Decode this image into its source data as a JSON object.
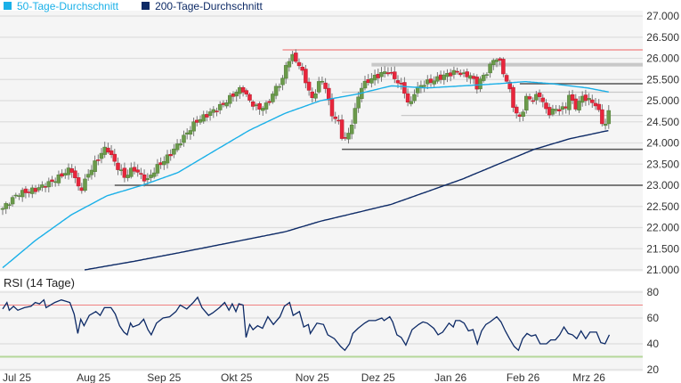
{
  "legend": [
    {
      "label": "50-Tage-Durchschnitt",
      "color": "#1ab0e8"
    },
    {
      "label": "200-Tage-Durchschnitt",
      "color": "#0d2a66"
    }
  ],
  "chart_data": [
    {
      "type": "candlestick",
      "title": "",
      "x_unit": "trading day index",
      "xlim": [
        0,
        184
      ],
      "ylim": [
        21000,
        27000
      ],
      "y_ticks": [
        "27.000",
        "26.500",
        "26.000",
        "25.500",
        "25.000",
        "24.500",
        "24.000",
        "23.500",
        "23.000",
        "22.500",
        "22.000",
        "21.500",
        "21.000"
      ],
      "y_tick_values": [
        27000,
        26500,
        26000,
        25500,
        25000,
        24500,
        24000,
        23500,
        23000,
        22500,
        22000,
        21500,
        21000
      ],
      "x_ticks": [
        {
          "label": "Jul 25",
          "day": 0
        },
        {
          "label": "Aug 25",
          "day": 27.6
        },
        {
          "label": "Sep 25",
          "day": 49
        },
        {
          "label": "Okt 25",
          "day": 71
        },
        {
          "label": "Nov 25",
          "day": 94
        },
        {
          "label": "Dez 25",
          "day": 114
        },
        {
          "label": "Jan 26",
          "day": 136
        },
        {
          "label": "Feb 26",
          "day": 158
        },
        {
          "label": "Mrz 26",
          "day": 178
        }
      ],
      "close_anchors": [
        [
          0,
          22450
        ],
        [
          4.6,
          22800
        ],
        [
          10,
          22900
        ],
        [
          15.4,
          23100
        ],
        [
          20.8,
          23400
        ],
        [
          23.5,
          22850
        ],
        [
          26.2,
          23300
        ],
        [
          30.3,
          23800
        ],
        [
          31.6,
          23900
        ],
        [
          34.3,
          23500
        ],
        [
          37,
          23200
        ],
        [
          39.7,
          23400
        ],
        [
          43.8,
          23100
        ],
        [
          46.5,
          23400
        ],
        [
          50.5,
          23700
        ],
        [
          54.6,
          24100
        ],
        [
          58.6,
          24500
        ],
        [
          62.7,
          24700
        ],
        [
          66.8,
          24900
        ],
        [
          70.8,
          25200
        ],
        [
          72.7,
          25300
        ],
        [
          74.9,
          25000
        ],
        [
          77.6,
          24800
        ],
        [
          80.3,
          24900
        ],
        [
          83,
          25300
        ],
        [
          85.1,
          25500
        ],
        [
          86.2,
          25900
        ],
        [
          87.8,
          26050
        ],
        [
          89.7,
          25900
        ],
        [
          92.4,
          25400
        ],
        [
          93.8,
          25000
        ],
        [
          96.5,
          25500
        ],
        [
          97.8,
          25400
        ],
        [
          99.7,
          24700
        ],
        [
          101.9,
          24500
        ],
        [
          103.2,
          24100
        ],
        [
          104.6,
          24100
        ],
        [
          106.8,
          24700
        ],
        [
          108.6,
          25300
        ],
        [
          111.4,
          25500
        ],
        [
          114.1,
          25600
        ],
        [
          116.8,
          25700
        ],
        [
          119.5,
          25500
        ],
        [
          122.2,
          25200
        ],
        [
          123.5,
          24800
        ],
        [
          124.9,
          25200
        ],
        [
          127.6,
          25400
        ],
        [
          131.6,
          25500
        ],
        [
          134.3,
          25600
        ],
        [
          138.4,
          25700
        ],
        [
          139.7,
          25600
        ],
        [
          142.4,
          25600
        ],
        [
          143.8,
          25300
        ],
        [
          145.1,
          25500
        ],
        [
          147.3,
          25700
        ],
        [
          149.2,
          26000
        ],
        [
          150.5,
          26000
        ],
        [
          151.9,
          25700
        ],
        [
          154.6,
          25100
        ],
        [
          155.4,
          24700
        ],
        [
          157.3,
          24600
        ],
        [
          159.2,
          25100
        ],
        [
          161.4,
          25000
        ],
        [
          162.7,
          25200
        ],
        [
          165.4,
          24700
        ],
        [
          168.1,
          24800
        ],
        [
          170.8,
          24800
        ],
        [
          172.2,
          25200
        ],
        [
          173.5,
          24800
        ],
        [
          176.2,
          25100
        ],
        [
          178.1,
          25000
        ],
        [
          180.3,
          24900
        ],
        [
          181.9,
          24500
        ],
        [
          183,
          24450
        ],
        [
          184.3,
          24800
        ]
      ],
      "series": [
        {
          "name": "50-Tage-Durchschnitt",
          "color": "#1ab0e8",
          "points": [
            [
              0,
              21050
            ],
            [
              10,
              21700
            ],
            [
              20.8,
              22300
            ],
            [
              31.6,
              22750
            ],
            [
              42.4,
              23000
            ],
            [
              53.2,
              23300
            ],
            [
              64,
              23800
            ],
            [
              74.9,
              24300
            ],
            [
              85.7,
              24700
            ],
            [
              96.5,
              25000
            ],
            [
              107.3,
              25150
            ],
            [
              118,
              25350
            ],
            [
              128.9,
              25300
            ],
            [
              139.7,
              25350
            ],
            [
              150.5,
              25400
            ],
            [
              158.6,
              25450
            ],
            [
              166.8,
              25400
            ],
            [
              177.6,
              25300
            ],
            [
              184.3,
              25200
            ]
          ]
        },
        {
          "name": "200-Tage-Durchschnitt",
          "color": "#0d2a66",
          "points": [
            [
              24.9,
              21000
            ],
            [
              39.7,
              21200
            ],
            [
              53.2,
              21400
            ],
            [
              69.5,
              21650
            ],
            [
              85.7,
              21900
            ],
            [
              96.5,
              22150
            ],
            [
              107.3,
              22350
            ],
            [
              118,
              22550
            ],
            [
              128.9,
              22850
            ],
            [
              139.7,
              23150
            ],
            [
              150.5,
              23500
            ],
            [
              161.4,
              23850
            ],
            [
              172.2,
              24100
            ],
            [
              184.3,
              24300
            ]
          ]
        }
      ],
      "levels": [
        {
          "value": 26200,
          "from_day": 85,
          "color": "#f08080",
          "style": "resistance"
        },
        {
          "value": 25850,
          "from_day": 112,
          "color": "#c8c8c8",
          "style": "zone"
        },
        {
          "value": 25400,
          "from_day": 157,
          "color": "#555555",
          "style": "line"
        },
        {
          "value": 25200,
          "from_day": 103,
          "color": "#c8c8c8",
          "style": "light"
        },
        {
          "value": 24650,
          "from_day": 121,
          "color": "#c8c8c8",
          "style": "light"
        },
        {
          "value": 23850,
          "from_day": 103,
          "color": "#555555",
          "style": "line"
        },
        {
          "value": 23000,
          "from_day": 34,
          "color": "#555555",
          "style": "line"
        }
      ],
      "up_color": "#6b9a4b",
      "down_color": "#e8263c"
    },
    {
      "type": "line",
      "title": "RSI (14 Tage)",
      "ylim": [
        20,
        80
      ],
      "y_ticks": [
        "80",
        "60",
        "40",
        "20"
      ],
      "y_tick_values": [
        80,
        60,
        40,
        20
      ],
      "overbought": 70,
      "oversold": 30,
      "color": "#0d2a66",
      "points": [
        [
          0,
          67
        ],
        [
          1.3,
          72
        ],
        [
          2,
          66
        ],
        [
          3.3,
          69
        ],
        [
          4.6,
          66
        ],
        [
          6.6,
          68
        ],
        [
          8.6,
          69
        ],
        [
          9.9,
          72
        ],
        [
          11.2,
          71
        ],
        [
          12.5,
          74
        ],
        [
          13.2,
          68
        ],
        [
          15.8,
          72
        ],
        [
          17.8,
          74
        ],
        [
          19.1,
          73
        ],
        [
          20.4,
          72
        ],
        [
          21.7,
          63
        ],
        [
          22.8,
          48
        ],
        [
          23.7,
          59
        ],
        [
          24.7,
          54
        ],
        [
          26.3,
          62
        ],
        [
          28.3,
          65
        ],
        [
          29.6,
          62
        ],
        [
          30.9,
          68
        ],
        [
          32.9,
          68
        ],
        [
          34.2,
          63
        ],
        [
          35.5,
          54
        ],
        [
          36.8,
          49
        ],
        [
          37.8,
          47
        ],
        [
          38.8,
          56
        ],
        [
          39.5,
          53
        ],
        [
          41.4,
          55
        ],
        [
          42.8,
          59
        ],
        [
          44.1,
          51
        ],
        [
          45.1,
          47
        ],
        [
          46.7,
          56
        ],
        [
          48.7,
          60
        ],
        [
          50.7,
          61
        ],
        [
          52.6,
          65
        ],
        [
          53.9,
          70
        ],
        [
          55.9,
          67
        ],
        [
          57.9,
          72
        ],
        [
          59.2,
          76
        ],
        [
          60.5,
          68
        ],
        [
          62.5,
          62
        ],
        [
          63.8,
          64
        ],
        [
          65.8,
          68
        ],
        [
          67.4,
          72
        ],
        [
          68.7,
          66
        ],
        [
          69.7,
          71
        ],
        [
          70.8,
          65
        ],
        [
          71.7,
          71
        ],
        [
          73,
          70
        ],
        [
          73.9,
          45
        ],
        [
          75,
          55
        ],
        [
          76,
          51
        ],
        [
          77.4,
          54
        ],
        [
          78.9,
          52
        ],
        [
          80.5,
          61
        ],
        [
          82.2,
          55
        ],
        [
          84.2,
          61
        ],
        [
          85.5,
          69
        ],
        [
          87.1,
          72
        ],
        [
          88.2,
          62
        ],
        [
          90.1,
          65
        ],
        [
          91.4,
          53
        ],
        [
          92.8,
          55
        ],
        [
          93.4,
          48
        ],
        [
          95.4,
          56
        ],
        [
          97.4,
          55
        ],
        [
          98.7,
          47
        ],
        [
          100.7,
          44
        ],
        [
          102.6,
          38
        ],
        [
          103.9,
          35
        ],
        [
          105.3,
          40
        ],
        [
          106.3,
          48
        ],
        [
          107.9,
          52
        ],
        [
          109.9,
          56
        ],
        [
          111.2,
          58
        ],
        [
          113.2,
          58
        ],
        [
          115.1,
          60
        ],
        [
          115.8,
          58
        ],
        [
          117.5,
          61
        ],
        [
          118.4,
          57
        ],
        [
          119.7,
          47
        ],
        [
          121,
          45
        ],
        [
          122.4,
          39
        ],
        [
          124.3,
          51
        ],
        [
          126.3,
          55
        ],
        [
          127.6,
          57
        ],
        [
          128.9,
          56
        ],
        [
          130.9,
          52
        ],
        [
          132.2,
          47
        ],
        [
          133.6,
          49
        ],
        [
          135.5,
          56
        ],
        [
          136.8,
          53
        ],
        [
          137.5,
          58
        ],
        [
          138.8,
          58
        ],
        [
          140.1,
          56
        ],
        [
          141.4,
          50
        ],
        [
          142.8,
          51
        ],
        [
          144.1,
          40
        ],
        [
          145.4,
          50
        ],
        [
          146.7,
          55
        ],
        [
          148,
          57
        ],
        [
          150,
          61
        ],
        [
          151.3,
          57
        ],
        [
          152.6,
          50
        ],
        [
          153.9,
          44
        ],
        [
          155.3,
          38
        ],
        [
          156.6,
          35
        ],
        [
          157.9,
          44
        ],
        [
          159.2,
          48
        ],
        [
          160.5,
          46
        ],
        [
          161.8,
          47
        ],
        [
          163.2,
          40
        ],
        [
          165.1,
          40
        ],
        [
          166.4,
          43
        ],
        [
          167.8,
          43
        ],
        [
          169.1,
          47
        ],
        [
          170.4,
          53
        ],
        [
          171.7,
          48
        ],
        [
          173,
          47
        ],
        [
          174.3,
          44
        ],
        [
          175.6,
          50
        ],
        [
          177,
          44
        ],
        [
          178.3,
          49
        ],
        [
          180.3,
          49
        ],
        [
          181.6,
          41
        ],
        [
          182.9,
          40
        ],
        [
          184.2,
          47
        ]
      ]
    }
  ]
}
